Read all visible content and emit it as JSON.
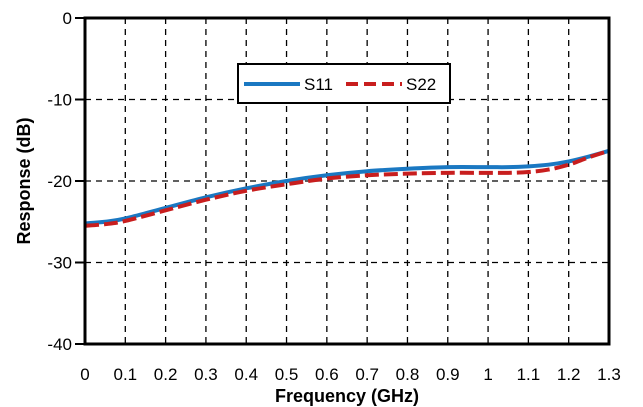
{
  "chart_data": {
    "type": "line",
    "title": "",
    "xlabel": "Frequency (GHz)",
    "ylabel": "Response (dB)",
    "xlim": [
      0,
      1.3
    ],
    "ylim": [
      -40,
      0
    ],
    "xticks": [
      0,
      0.1,
      0.2,
      0.3,
      0.4,
      0.5,
      0.6,
      0.7,
      0.8,
      0.9,
      1,
      1.1,
      1.2,
      1.3
    ],
    "xtick_labels": [
      "0",
      "0.1",
      "0.2",
      "0.3",
      "0.4",
      "0.5",
      "0.6",
      "0.7",
      "0.8",
      "0.9",
      "1",
      "1.1",
      "1.2",
      "1.3"
    ],
    "yticks": [
      0,
      -10,
      -20,
      -30,
      -40
    ],
    "ytick_labels": [
      "0",
      "-10",
      "-20",
      "-30",
      "-40"
    ],
    "grid": true,
    "legend": "top-center",
    "series": [
      {
        "name": "S11",
        "color": "#1a78c2",
        "style": "solid",
        "x": [
          0,
          0.05,
          0.1,
          0.2,
          0.3,
          0.4,
          0.5,
          0.6,
          0.7,
          0.8,
          0.9,
          1.0,
          1.05,
          1.1,
          1.15,
          1.2,
          1.25,
          1.3
        ],
        "y": [
          -25.2,
          -25.0,
          -24.6,
          -23.3,
          -22.0,
          -20.9,
          -20.0,
          -19.3,
          -18.8,
          -18.5,
          -18.3,
          -18.3,
          -18.3,
          -18.2,
          -18.0,
          -17.6,
          -17.0,
          -16.3
        ]
      },
      {
        "name": "S22",
        "color": "#c81e1e",
        "style": "dashed",
        "x": [
          0,
          0.05,
          0.1,
          0.2,
          0.3,
          0.4,
          0.5,
          0.6,
          0.7,
          0.8,
          0.9,
          1.0,
          1.05,
          1.1,
          1.15,
          1.2,
          1.25,
          1.3
        ],
        "y": [
          -25.5,
          -25.3,
          -24.9,
          -23.6,
          -22.3,
          -21.2,
          -20.4,
          -19.7,
          -19.3,
          -19.1,
          -19.0,
          -19.0,
          -19.0,
          -18.9,
          -18.6,
          -18.0,
          -17.1,
          -16.3
        ]
      }
    ]
  }
}
